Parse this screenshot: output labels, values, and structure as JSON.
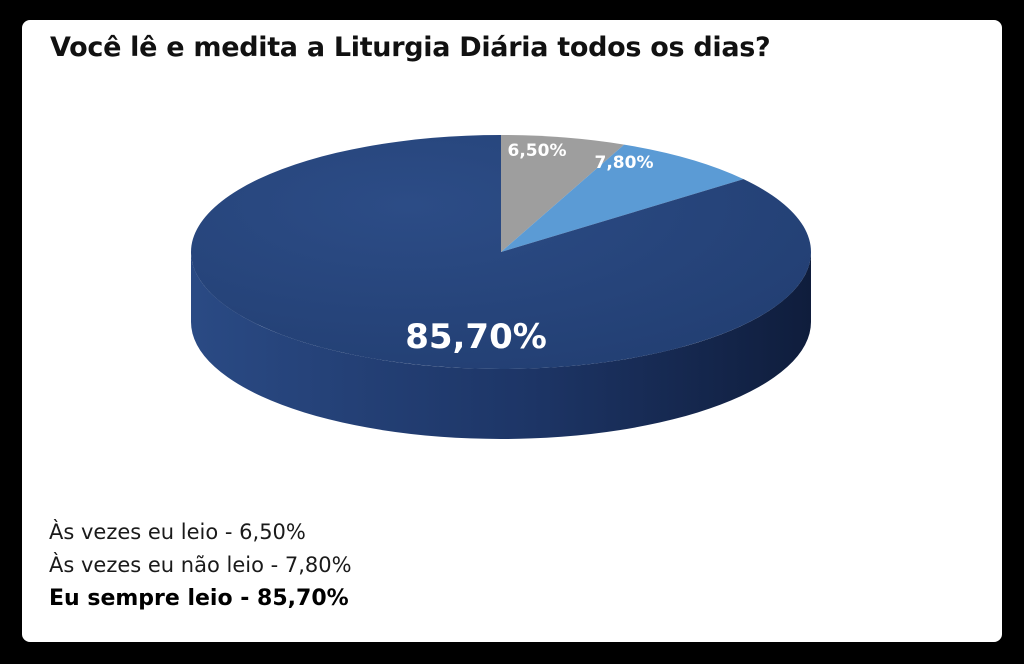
{
  "chart_data": {
    "type": "pie",
    "title": "Você lê e medita a Liturgia Diária todos os dias?",
    "slices": [
      {
        "label": "Às vezes eu leio",
        "value": 6.5,
        "display": "6,50%",
        "color": "#9e9e9e"
      },
      {
        "label": "Às vezes eu não leio",
        "value": 7.8,
        "display": "7,80%",
        "color": "#5b9bd5"
      },
      {
        "label": "Eu sempre leio",
        "value": 85.7,
        "display": "85,70%",
        "color": "#264478"
      }
    ],
    "legend": [
      "Às vezes eu leio - 6,50%",
      "Às vezes eu não leio - 7,80%",
      "Eu sempre leio - 85,70%"
    ],
    "legend_placement": "bottom-left"
  }
}
